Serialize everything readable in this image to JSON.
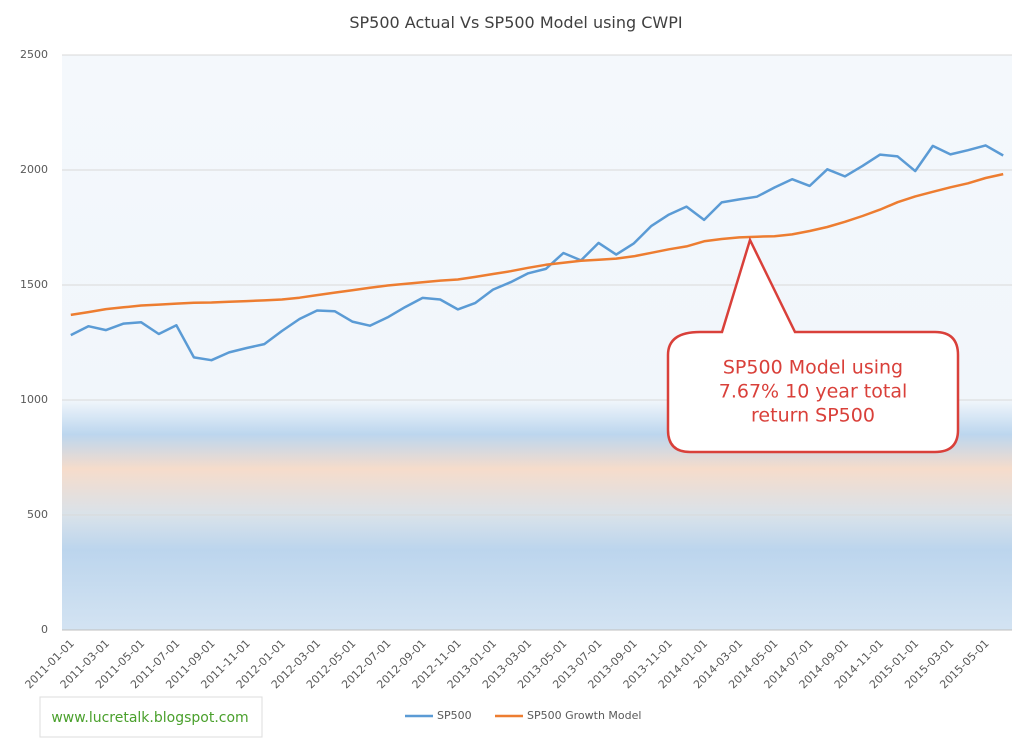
{
  "chart_data": {
    "type": "line",
    "title": "SP500 Actual Vs SP500 Model using CWPI",
    "categories": [
      "2011-01-01",
      null,
      "2011-03-01",
      null,
      "2011-05-01",
      null,
      "2011-07-01",
      null,
      "2011-09-01",
      null,
      "2011-11-01",
      null,
      "2012-01-01",
      null,
      "2012-03-01",
      null,
      "2012-05-01",
      null,
      "2012-07-01",
      null,
      "2012-09-01",
      null,
      "2012-11-01",
      null,
      "2013-01-01",
      null,
      "2013-03-01",
      null,
      "2013-05-01",
      null,
      "2013-07-01",
      null,
      "2013-09-01",
      null,
      "2013-11-01",
      null,
      "2014-01-01",
      null,
      "2014-03-01",
      null,
      "2014-05-01",
      null,
      "2014-07-01",
      null,
      "2014-09-01",
      null,
      "2014-11-01",
      null,
      "2015-01-01",
      null,
      "2015-03-01",
      null,
      "2015-05-01",
      null
    ],
    "series": [
      {
        "name": "SP500",
        "color": "#5b9bd5",
        "values": [
          1282,
          1321,
          1304,
          1332,
          1338,
          1287,
          1325,
          1185,
          1173,
          1207,
          1226,
          1243,
          1300,
          1352,
          1389,
          1386,
          1341,
          1323,
          1359,
          1404,
          1444,
          1437,
          1394,
          1422,
          1480,
          1512,
          1551,
          1570,
          1639,
          1607,
          1683,
          1632,
          1681,
          1757,
          1806,
          1841,
          1783,
          1859,
          1872,
          1884,
          1924,
          1960,
          1931,
          2003,
          1972,
          2018,
          2067,
          2059,
          1995,
          2105,
          2068,
          2086,
          2107,
          2063
        ]
      },
      {
        "name": "SP500 Growth Model",
        "color": "#ed7d31",
        "values": [
          1370,
          1382,
          1395,
          1403,
          1411,
          1415,
          1419,
          1423,
          1424,
          1427,
          1430,
          1433,
          1437,
          1445,
          1456,
          1467,
          1477,
          1488,
          1498,
          1505,
          1512,
          1519,
          1524,
          1535,
          1548,
          1560,
          1575,
          1588,
          1597,
          1605,
          1610,
          1615,
          1625,
          1640,
          1655,
          1668,
          1690,
          1700,
          1707,
          1710,
          1712,
          1720,
          1735,
          1752,
          1775,
          1800,
          1828,
          1860,
          1885,
          1905,
          1925,
          1942,
          1965,
          1982
        ]
      }
    ],
    "ylim": [
      0,
      2500
    ],
    "yticks": [
      0,
      500,
      1000,
      1500,
      2000,
      2500
    ],
    "grid": true,
    "legend": "bottom",
    "annotation": [
      "SP500 Model using",
      "7.67% 10 year total",
      "return SP500"
    ],
    "watermark": "www.lucretalk.blogspot.com"
  }
}
